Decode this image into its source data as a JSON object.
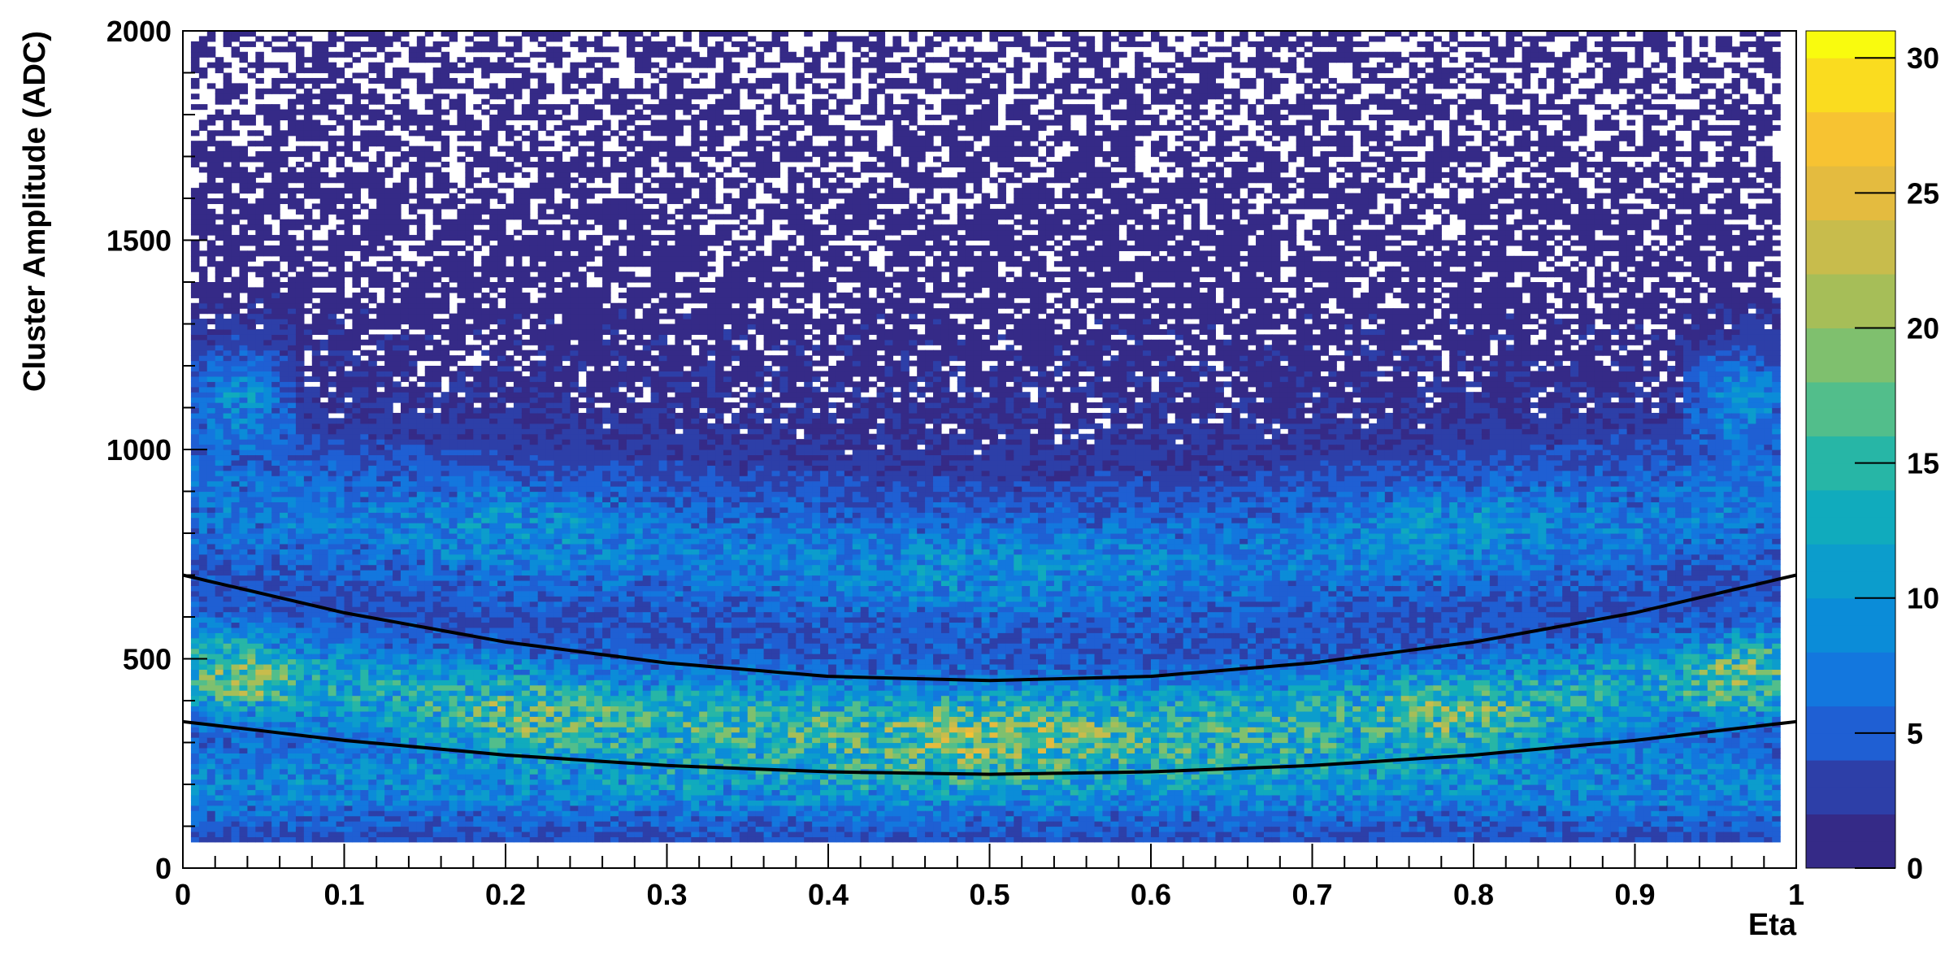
{
  "chart_data": {
    "type": "heatmap",
    "xlabel": "Eta",
    "ylabel": "Cluster Amplitude (ADC)",
    "xlim": [
      0,
      1
    ],
    "ylim": [
      0,
      2000
    ],
    "x_ticks": [
      "0",
      "0.1",
      "0.2",
      "0.3",
      "0.4",
      "0.5",
      "0.6",
      "0.7",
      "0.8",
      "0.9",
      "1"
    ],
    "y_ticks": [
      "0",
      "500",
      "1000",
      "1500",
      "2000"
    ],
    "colorbar": {
      "range": [
        0,
        31
      ],
      "ticks": [
        "0",
        "5",
        "10",
        "15",
        "20",
        "25",
        "30"
      ],
      "palette": [
        "#352a87",
        "#2d3fa8",
        "#1f5fd3",
        "#1377de",
        "#0b8cd8",
        "#0c9dcc",
        "#10abbd",
        "#27b6a6",
        "#52be8b",
        "#7fc06e",
        "#a6be58",
        "#c8bc4c",
        "#e4bb3f",
        "#f7c332",
        "#fadc1f",
        "#f9fb0e"
      ]
    },
    "density_model": {
      "description_free": true,
      "bands": [
        {
          "eta": [
            0.0,
            1.0
          ],
          "amp_center": [
            280,
            460
          ],
          "peak": 22
        },
        {
          "eta": [
            0.0,
            1.0
          ],
          "amp_center": [
            680,
            820
          ],
          "peak": 14
        }
      ]
    },
    "curves": [
      {
        "color": "#000000",
        "points": [
          [
            0.0,
            700
          ],
          [
            0.1,
            610
          ],
          [
            0.2,
            540
          ],
          [
            0.3,
            490
          ],
          [
            0.4,
            458
          ],
          [
            0.5,
            448
          ],
          [
            0.6,
            458
          ],
          [
            0.7,
            490
          ],
          [
            0.8,
            540
          ],
          [
            0.9,
            610
          ],
          [
            1.0,
            700
          ]
        ]
      },
      {
        "color": "#000000",
        "points": [
          [
            0.0,
            350
          ],
          [
            0.1,
            305
          ],
          [
            0.2,
            270
          ],
          [
            0.3,
            245
          ],
          [
            0.4,
            230
          ],
          [
            0.5,
            224
          ],
          [
            0.6,
            230
          ],
          [
            0.7,
            245
          ],
          [
            0.8,
            270
          ],
          [
            0.9,
            305
          ],
          [
            1.0,
            350
          ]
        ]
      }
    ]
  }
}
